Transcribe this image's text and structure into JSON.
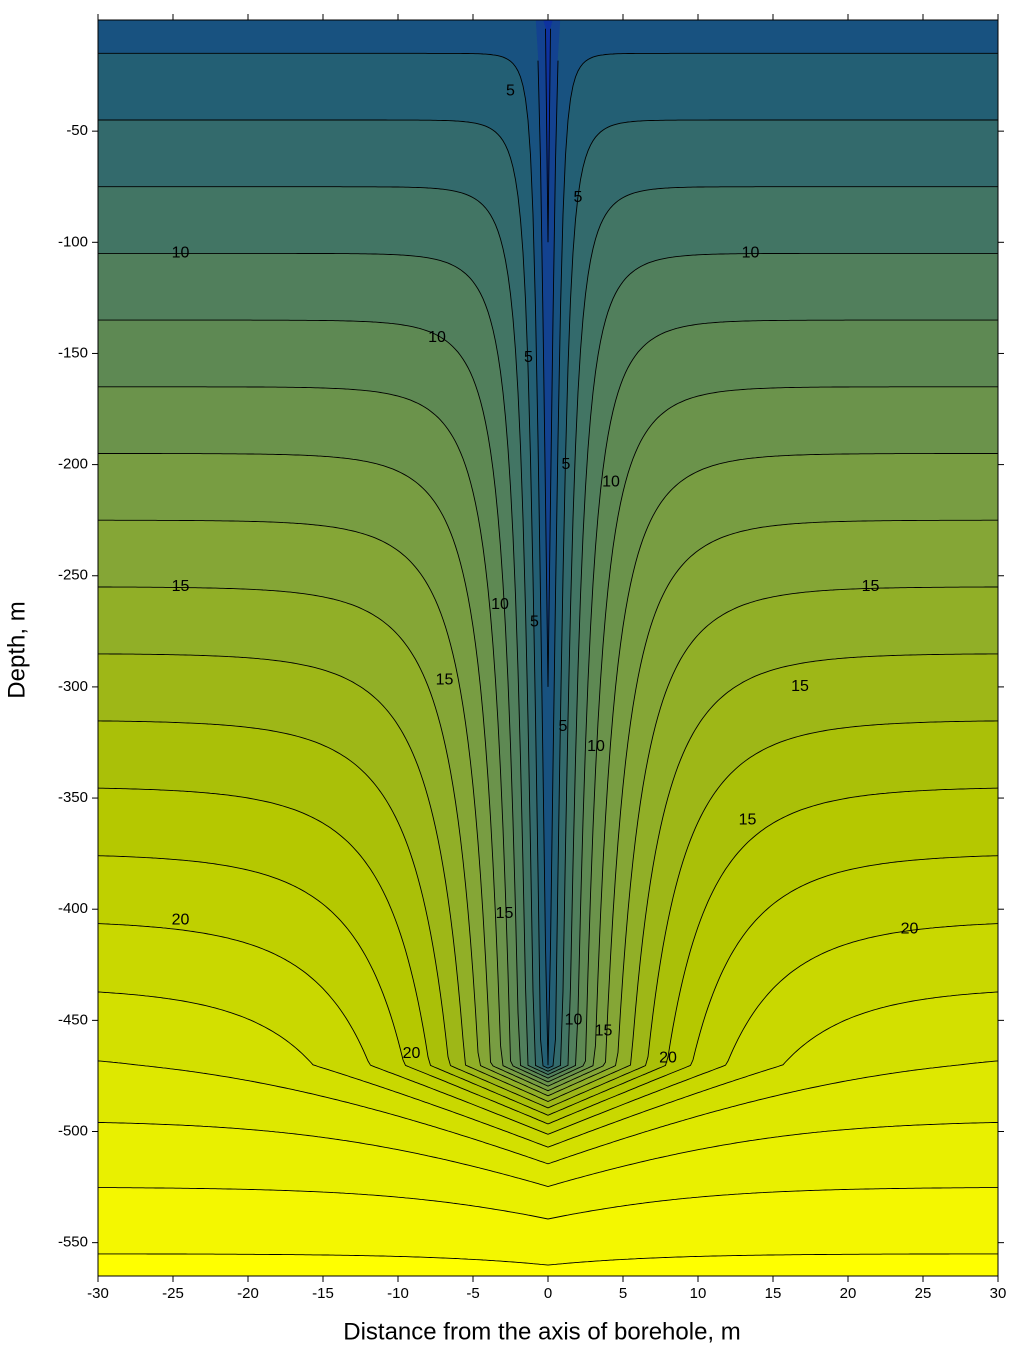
{
  "chart_data": {
    "type": "contour",
    "x_label": "Distance from the axis of borehole, m",
    "y_label": "Depth, m",
    "xlim": [
      -30,
      30
    ],
    "ylim": [
      -565,
      0
    ],
    "xticks": [
      -30,
      -25,
      -20,
      -15,
      -10,
      -5,
      0,
      5,
      10,
      15,
      20,
      25,
      30
    ],
    "yticks": [
      -550,
      -500,
      -450,
      -400,
      -350,
      -300,
      -250,
      -200,
      -150,
      -100,
      -50
    ],
    "contour_labels": [
      {
        "level": 10,
        "x": -24.5,
        "y": -105
      },
      {
        "level": 10,
        "x": 13.5,
        "y": -105
      },
      {
        "level": 10,
        "x": -7.4,
        "y": -143
      },
      {
        "level": 5,
        "x": -2.5,
        "y": -32
      },
      {
        "level": 5,
        "x": 2,
        "y": -80
      },
      {
        "level": 5,
        "x": -1.3,
        "y": -152
      },
      {
        "level": 5,
        "x": 1.2,
        "y": -200
      },
      {
        "level": 10,
        "x": 4.2,
        "y": -208
      },
      {
        "level": 15,
        "x": -24.5,
        "y": -255
      },
      {
        "level": 15,
        "x": 21.5,
        "y": -255
      },
      {
        "level": 10,
        "x": -3.2,
        "y": -263
      },
      {
        "level": 5,
        "x": -0.9,
        "y": -271
      },
      {
        "level": 15,
        "x": -6.9,
        "y": -297
      },
      {
        "level": 15,
        "x": 16.8,
        "y": -300
      },
      {
        "level": 5,
        "x": 1,
        "y": -318
      },
      {
        "level": 10,
        "x": 3.2,
        "y": -327
      },
      {
        "level": 15,
        "x": 13.3,
        "y": -360
      },
      {
        "level": 15,
        "x": -2.9,
        "y": -402
      },
      {
        "level": 20,
        "x": -24.5,
        "y": -405
      },
      {
        "level": 20,
        "x": 24.1,
        "y": -409
      },
      {
        "level": 10,
        "x": 1.7,
        "y": -450
      },
      {
        "level": 15,
        "x": 3.7,
        "y": -455
      },
      {
        "level": 20,
        "x": -9.1,
        "y": -465
      },
      {
        "level": 20,
        "x": 8,
        "y": -467
      }
    ]
  }
}
